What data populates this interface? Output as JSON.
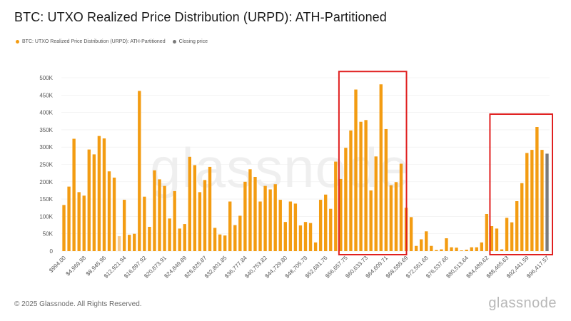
{
  "header": {
    "title": "BTC: UTXO Realized Price Distribution (URPD): ATH-Partitioned"
  },
  "legend": {
    "items": [
      {
        "label": "BTC: UTXO Realized Price Distribution (URPD): ATH-Partitioned",
        "color": "#f39c12"
      },
      {
        "label": "Closing price",
        "color": "#7a7a7a"
      }
    ]
  },
  "footer": {
    "copyright": "© 2025 Glassnode. All Rights Reserved.",
    "brand": "glassnode"
  },
  "watermark": "glassnode",
  "colors": {
    "bar": "#f39c12",
    "bar_light": "#f7c98a",
    "closing": "#7a7a7a",
    "highlight": "#e02020",
    "grid": "#eeeeee"
  },
  "chart_data": {
    "type": "bar",
    "title": "BTC: UTXO Realized Price Distribution (URPD): ATH-Partitioned",
    "xlabel": "",
    "ylabel": "",
    "ylim": [
      0,
      500000
    ],
    "yticks": [
      0,
      50000,
      100000,
      150000,
      200000,
      250000,
      300000,
      350000,
      400000,
      450000,
      500000
    ],
    "ytick_labels": [
      "0",
      "50K",
      "100K",
      "150K",
      "200K",
      "250K",
      "300K",
      "350K",
      "400K",
      "450K",
      "500K"
    ],
    "xtick_labels": [
      "$994.00",
      "$4,969.98",
      "$8,945.96",
      "$12,921.94",
      "$16,897.92",
      "$20,873.91",
      "$24,849.89",
      "$28,825.87",
      "$32,801.85",
      "$36,777.84",
      "$40,753.82",
      "$44,729.80",
      "$48,705.78",
      "$52,681.76",
      "$56,657.75",
      "$60,633.73",
      "$64,609.71",
      "$68,585.69",
      "$72,561.68",
      "$76,537.66",
      "$80,513.64",
      "$84,489.62",
      "$88,465.63",
      "$92,441.59",
      "$96,417.57"
    ],
    "values": [
      133000,
      186000,
      324000,
      170000,
      160000,
      293000,
      279000,
      332000,
      325000,
      230000,
      212000,
      43000,
      148000,
      47000,
      50000,
      462000,
      157000,
      70000,
      233000,
      207000,
      188000,
      94000,
      173000,
      65000,
      78000,
      272000,
      248000,
      170000,
      205000,
      243000,
      67000,
      48000,
      45000,
      143000,
      75000,
      102000,
      200000,
      236000,
      214000,
      143000,
      188000,
      178000,
      193000,
      148000,
      84000,
      143000,
      137000,
      74000,
      84000,
      81000,
      25000,
      148000,
      163000,
      122000,
      258000,
      208000,
      298000,
      348000,
      466000,
      373000,
      378000,
      175000,
      273000,
      481000,
      352000,
      190000,
      199000,
      252000,
      125000,
      98000,
      15000,
      34000,
      57000,
      15000,
      3000,
      5000,
      37000,
      11000,
      10000,
      2000,
      4000,
      11000,
      11000,
      25000,
      107000,
      72000,
      65000,
      5000,
      96000,
      83000,
      144000,
      196000,
      283000,
      292000,
      358000,
      292000,
      281000
    ],
    "light_indices": [
      11
    ],
    "closing_index": 96,
    "closing_label": "Closing price",
    "highlight_ranges": [
      [
        56,
        67
      ],
      [
        86,
        96
      ]
    ]
  }
}
